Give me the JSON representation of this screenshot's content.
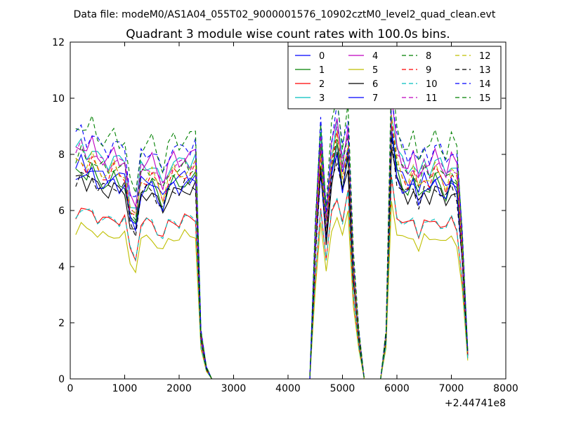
{
  "header": {
    "suptitle": "Data file: modeM0/AS1A04_055T02_9000001576_10902cztM0_level2_quad_clean.evt"
  },
  "chart_data": {
    "type": "line",
    "title": "Quadrant 3 module wise count rates with 100.0s bins.",
    "xlabel": "",
    "ylabel": "",
    "x_offset_label": "+2.44741e8",
    "xlim": [
      0,
      8000
    ],
    "ylim": [
      0,
      12
    ],
    "xticks": [
      0,
      1000,
      2000,
      3000,
      4000,
      5000,
      6000,
      7000,
      8000
    ],
    "yticks": [
      0,
      2,
      4,
      6,
      8,
      10,
      12
    ],
    "grid": false,
    "legend_position": "top-right",
    "legend_columns": 4,
    "x": [
      100,
      200,
      300,
      400,
      500,
      600,
      700,
      800,
      900,
      1000,
      1100,
      1200,
      1300,
      1400,
      1500,
      1600,
      1700,
      1800,
      1900,
      2000,
      2100,
      2200,
      2300,
      2400,
      2500,
      2600,
      2700,
      2800,
      2900,
      3000,
      3100,
      3200,
      3300,
      3400,
      3500,
      3600,
      3700,
      3800,
      3900,
      4000,
      4100,
      4200,
      4300,
      4400,
      4500,
      4600,
      4700,
      4800,
      4900,
      5000,
      5100,
      5200,
      5300,
      5400,
      5500,
      5600,
      5700,
      5800,
      5900,
      6000,
      6100,
      6200,
      6300,
      6400,
      6500,
      6600,
      6700,
      6800,
      6900,
      7000,
      7100,
      7200,
      7300
    ],
    "series": [
      {
        "name": "0",
        "color": "#0000ff",
        "dash": "solid",
        "level": 7.5
      },
      {
        "name": "1",
        "color": "#008000",
        "dash": "solid",
        "level": 7.3
      },
      {
        "name": "2",
        "color": "#ff0000",
        "dash": "solid",
        "level": 5.9
      },
      {
        "name": "3",
        "color": "#00bfbf",
        "dash": "solid",
        "level": 8.1
      },
      {
        "name": "4",
        "color": "#bf00bf",
        "dash": "solid",
        "level": 8.2
      },
      {
        "name": "5",
        "color": "#bfbf00",
        "dash": "solid",
        "level": 5.3
      },
      {
        "name": "6",
        "color": "#000000",
        "dash": "solid",
        "level": 7.0
      },
      {
        "name": "7",
        "color": "#0000ff",
        "dash": "solid",
        "level": 7.2
      },
      {
        "name": "8",
        "color": "#008000",
        "dash": "dashed",
        "level": 7.8
      },
      {
        "name": "9",
        "color": "#ff0000",
        "dash": "dashed",
        "level": 7.6
      },
      {
        "name": "10",
        "color": "#00bfbf",
        "dash": "dashed",
        "level": 5.9
      },
      {
        "name": "11",
        "color": "#bf00bf",
        "dash": "dashed",
        "level": 8.0
      },
      {
        "name": "12",
        "color": "#bfbf00",
        "dash": "dashed",
        "level": 7.7
      },
      {
        "name": "13",
        "color": "#000000",
        "dash": "dashed",
        "level": 7.1
      },
      {
        "name": "14",
        "color": "#0000ff",
        "dash": "dashed",
        "level": 8.6
      },
      {
        "name": "15",
        "color": "#008000",
        "dash": "dashed",
        "level": 8.9
      }
    ],
    "profile": [
      1.0,
      1.03,
      0.99,
      1.02,
      0.97,
      0.96,
      0.95,
      0.98,
      0.95,
      0.96,
      0.78,
      0.74,
      0.93,
      0.94,
      0.95,
      0.9,
      0.85,
      0.93,
      0.96,
      0.94,
      0.97,
      0.96,
      0.98,
      0.2,
      0.05,
      0,
      0,
      0,
      0,
      0,
      0,
      0,
      0,
      0,
      0,
      0,
      0,
      0,
      0,
      0,
      0,
      0,
      0,
      0,
      0.62,
      1.05,
      0.7,
      1.0,
      1.12,
      0.95,
      1.1,
      0.5,
      0.2,
      0,
      0,
      0,
      0,
      0.2,
      1.2,
      1.0,
      0.95,
      0.92,
      0.96,
      0.88,
      0.95,
      0.92,
      0.97,
      0.94,
      0.9,
      0.96,
      0.92,
      0.6,
      0.12
    ]
  }
}
